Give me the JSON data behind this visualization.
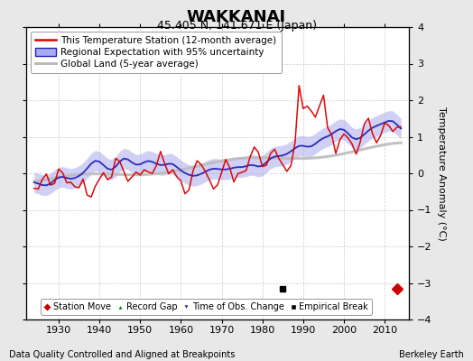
{
  "title": "WAKKANAI",
  "subtitle": "45.405 N, 141.671 E (Japan)",
  "ylabel": "Temperature Anomaly (°C)",
  "footer_left": "Data Quality Controlled and Aligned at Breakpoints",
  "footer_right": "Berkeley Earth",
  "xlim": [
    1922,
    2016
  ],
  "ylim": [
    -4,
    4
  ],
  "yticks": [
    -4,
    -3,
    -2,
    -1,
    0,
    1,
    2,
    3,
    4
  ],
  "xticks": [
    1930,
    1940,
    1950,
    1960,
    1970,
    1980,
    1990,
    2000,
    2010
  ],
  "station_move_x": 2013,
  "station_move_y": -3.15,
  "empirical_break_x": 1985,
  "empirical_break_y": -3.15,
  "red_line_color": "#dd0000",
  "blue_line_color": "#2222bb",
  "blue_fill_color": "#aaaaee",
  "gray_line_color": "#bbbbbb",
  "background_color": "#e8e8e8",
  "plot_bg_color": "#ffffff",
  "grid_color": "#cccccc",
  "title_fontsize": 13,
  "subtitle_fontsize": 9,
  "legend_fontsize": 7.5,
  "tick_fontsize": 8,
  "footer_fontsize": 7
}
